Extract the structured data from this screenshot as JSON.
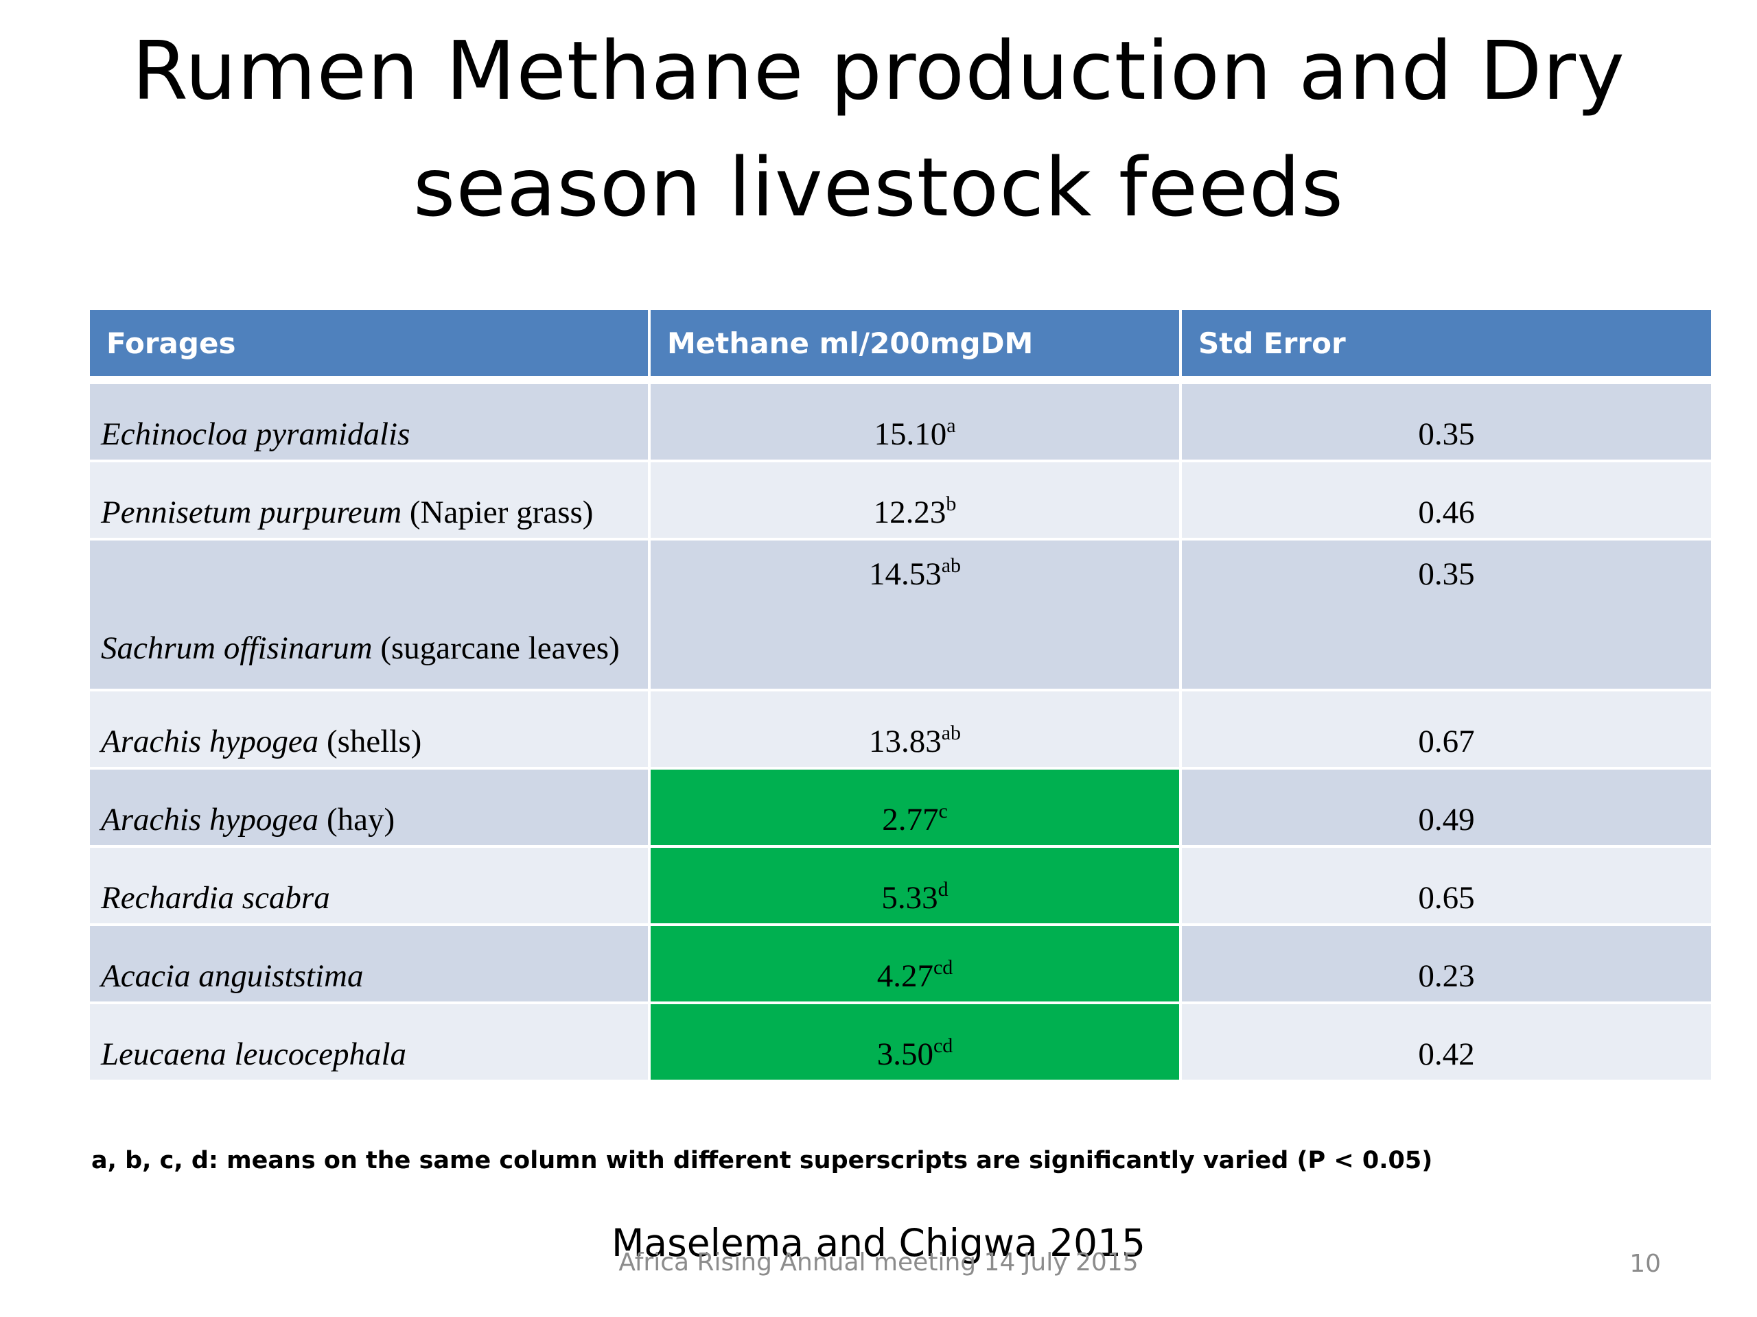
{
  "slide": {
    "title_line1": "Rumen Methane production and Dry",
    "title_line2": "season livestock feeds",
    "footnote": "a, b, c, d: means on the same column with different superscripts are significantly varied (P < 0.05)",
    "citation": "Maselema and Chigwa 2015",
    "footer": "Africa Rising Annual meeting 14 July 2015",
    "page_number": "10"
  },
  "table": {
    "headers": [
      "Forages",
      "Methane ml/200mgDM",
      "Std Error"
    ],
    "rows": [
      {
        "name": "Echinocloa pyramidalis",
        "suffix": "",
        "methane": "15.10",
        "sup": "a",
        "se": "0.35",
        "highlight": false
      },
      {
        "name": "Pennisetum purpureum",
        "suffix": " (Napier grass)",
        "methane": "12.23",
        "sup": "b",
        "se": "0.46",
        "highlight": false
      },
      {
        "name": "Sachrum offisinarum",
        "suffix": " (sugarcane leaves)",
        "methane": "14.53",
        "sup": "ab",
        "se": "0.35",
        "highlight": false
      },
      {
        "name": "Arachis hypogea",
        "suffix": " (shells)",
        "methane": "13.83",
        "sup": "ab",
        "se": "0.67",
        "highlight": false
      },
      {
        "name": "Arachis hypogea",
        "suffix": " (hay)",
        "methane": "2.77",
        "sup": "c",
        "se": "0.49",
        "highlight": true
      },
      {
        "name": "Rechardia scabra",
        "suffix": "",
        "methane": "5.33",
        "sup": "d",
        "se": "0.65",
        "highlight": true
      },
      {
        "name": "Acacia anguiststima",
        "suffix": "",
        "methane": "4.27",
        "sup": "cd",
        "se": "0.23",
        "highlight": true
      },
      {
        "name": "Leucaena leucocephala",
        "suffix": "",
        "methane": "3.50",
        "sup": "cd",
        "se": "0.42",
        "highlight": true
      }
    ],
    "colors": {
      "header": "#4f81bd",
      "highlight": "#00b050",
      "row_odd": "#cfd7e6",
      "row_even": "#e9edf4"
    }
  }
}
